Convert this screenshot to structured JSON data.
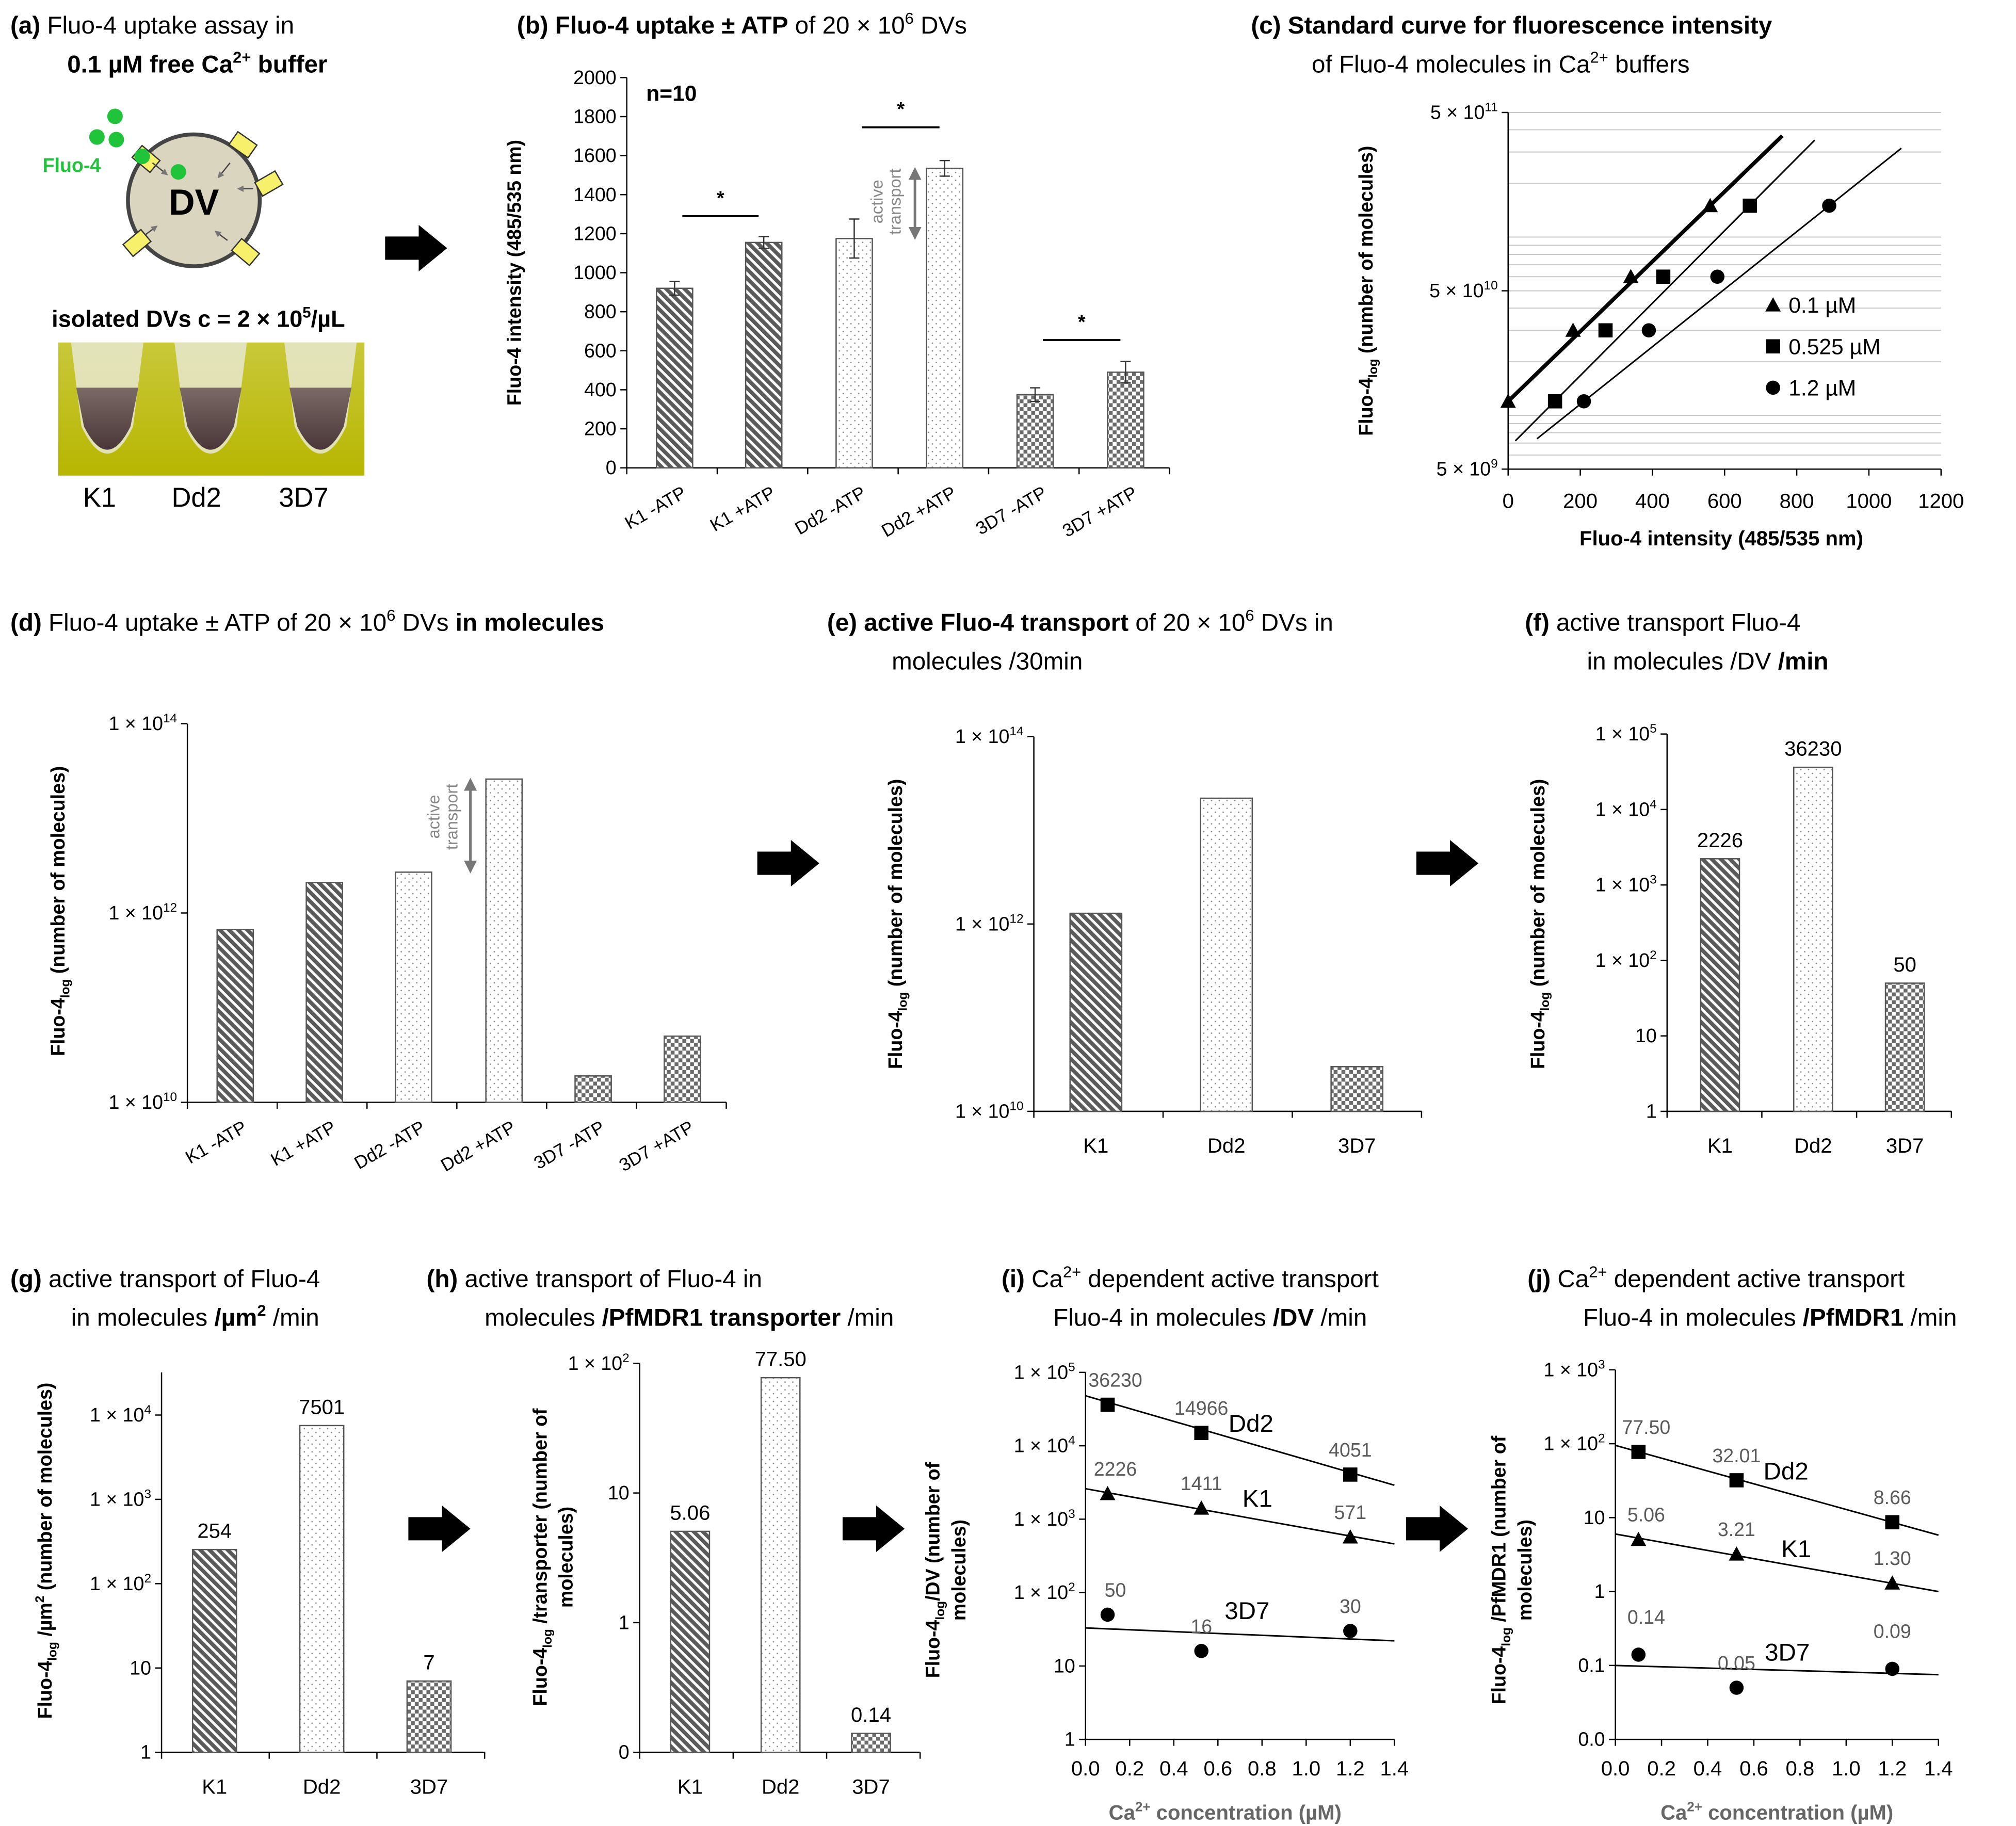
{
  "colors": {
    "fluo_green": "#1fc43a",
    "dv_fill": "#d9d5bf",
    "transporter_yellow": "#f7f06a",
    "bar_stroke": "#555555",
    "data_label_gray": "#5a5a5a",
    "arrow": "#000000"
  },
  "panel_a": {
    "title1": "**(a)** Fluo-4 uptake assay in",
    "title2": "**0.1 µM free Ca^{2+} buffer**",
    "fluo_label": "Fluo-4",
    "dv_label": "DV",
    "isolated_label": "**isolated DVs c = 2 × 10^{5}/µL**",
    "tubes": [
      "K1",
      "Dd2",
      "3D7"
    ]
  },
  "chart_data": [
    {
      "id": "b",
      "type": "bar",
      "scale": "linear",
      "title": [
        "**(b)**   **Fluo-4 uptake ± ATP** of 20 × 10^{6} DVs"
      ],
      "ylabel": [
        "**Fluo-4 intensity (485/535 nm)**"
      ],
      "xlabel": [],
      "ylim": [
        0,
        2000
      ],
      "yticks": [
        0,
        200,
        400,
        600,
        800,
        1000,
        1200,
        1400,
        1600,
        1800,
        2000
      ],
      "ytick_labels": [
        "0",
        "200",
        "400",
        "600",
        "800",
        "1000",
        "1200",
        "1400",
        "1600",
        "1800",
        "2000"
      ],
      "categories": [
        "K1 -ATP",
        "K1 +ATP",
        "Dd2 -ATP",
        "Dd2 +ATP",
        "3D7 -ATP",
        "3D7 +ATP"
      ],
      "values": [
        920,
        1155,
        1175,
        1535,
        375,
        490
      ],
      "errors": [
        35,
        30,
        100,
        40,
        35,
        55
      ],
      "patterns": [
        "hatch",
        "hatch",
        "dots",
        "dots",
        "checker",
        "checker"
      ],
      "n_label": "**n=10**",
      "significance": [
        {
          "pair": [
            0,
            1
          ],
          "label": "***",
          "y": 1290
        },
        {
          "pair": [
            2,
            3
          ],
          "label": "***",
          "y": 1745
        },
        {
          "pair": [
            4,
            5
          ],
          "label": "***",
          "y": 655
        }
      ],
      "arrow_label": [
        "active",
        "transport"
      ],
      "arrow_range": [
        1175,
        1535
      ],
      "grid": false,
      "legend": "none"
    },
    {
      "id": "c",
      "type": "scatter",
      "scale": "log",
      "title": [
        "**(c)**   **Standard curve for fluorescence intensity**",
        "of Fluo-4 molecules in Ca^{2+} buffers"
      ],
      "ylabel": [
        "**Fluo-4_{log} (number of molecules)**"
      ],
      "xlabel": [
        "**Fluo-4 intensity (485/535 nm)**"
      ],
      "xlim": [
        0,
        1200
      ],
      "ylim": [
        5000000000.0,
        500000000000.0
      ],
      "xticks": [
        0,
        200,
        400,
        600,
        800,
        1000,
        1200
      ],
      "xtick_labels": [
        "0",
        "200",
        "400",
        "600",
        "800",
        "1000",
        "1200"
      ],
      "yticks": [
        5000000000.0,
        50000000000.0,
        500000000000.0
      ],
      "ytick_labels": [
        "5 × 10^{9}",
        "5 × 10^{10}",
        "5 × 10^{11}"
      ],
      "grid": true,
      "legend": "lower-right",
      "series": [
        {
          "name": "0.1 µM",
          "marker": "triangle",
          "x": [
            0,
            180,
            340,
            560
          ],
          "y": [
            12000000000.0,
            30000000000.0,
            60000000000.0,
            150000000000.0
          ],
          "trend": [
            [
              0,
              12000000000.0
            ],
            [
              760,
              370000000000.0
            ]
          ],
          "trend_bold": true
        },
        {
          "name": "0.525 µM",
          "marker": "square",
          "x": [
            130,
            270,
            430,
            670
          ],
          "y": [
            12000000000.0,
            30000000000.0,
            60000000000.0,
            150000000000.0
          ],
          "trend": [
            [
              20,
              7200000000.0
            ],
            [
              850,
              350000000000.0
            ]
          ],
          "trend_bold": false
        },
        {
          "name": "1.2 µM",
          "marker": "circle",
          "x": [
            210,
            390,
            580,
            890
          ],
          "y": [
            12000000000.0,
            30000000000.0,
            60000000000.0,
            150000000000.0
          ],
          "trend": [
            [
              80,
              7400000000.0
            ],
            [
              1090,
              315000000000.0
            ]
          ],
          "trend_bold": false
        }
      ]
    },
    {
      "id": "d",
      "type": "bar",
      "scale": "log",
      "title": [
        "**(d)**  Fluo-4 uptake ± ATP of 20 × 10^{6} DVs **in molecules**"
      ],
      "ylabel": [
        "**Fluo-4_{log} (number of molecules)**"
      ],
      "xlabel": [],
      "ylim": [
        10000000000.0,
        100000000000000.0
      ],
      "yticks": [
        10000000000.0,
        1000000000000.0,
        100000000000000.0
      ],
      "ytick_labels": [
        "1 × 10^{10}",
        "1 × 10^{12}",
        "1 × 10^{14}"
      ],
      "categories": [
        "K1 -ATP",
        "K1 +ATP",
        "Dd2 -ATP",
        "Dd2 +ATP",
        "3D7 -ATP",
        "3D7 +ATP"
      ],
      "values": [
        670000000000.0,
        2100000000000.0,
        2700000000000.0,
        26000000000000.0,
        19000000000.0,
        50000000000.0
      ],
      "patterns": [
        "hatch",
        "hatch",
        "dots",
        "dots",
        "checker",
        "checker"
      ],
      "arrow_label": [
        "active",
        "transport"
      ],
      "arrow_range": [
        2700000000000.0,
        26000000000000.0
      ],
      "grid": false,
      "legend": "none"
    },
    {
      "id": "e",
      "type": "bar",
      "scale": "log",
      "title": [
        "**(e)**  **active Fluo-4 transport** of 20 × 10^{6} DVs in",
        "molecules /30min"
      ],
      "ylabel": [
        "**Fluo-4_{log} (number of molecules)**"
      ],
      "xlabel": [],
      "ylim": [
        10000000000.0,
        100000000000000.0
      ],
      "yticks": [
        10000000000.0,
        1000000000000.0,
        100000000000000.0
      ],
      "ytick_labels": [
        "1 × 10^{10}",
        "1 × 10^{12}",
        "1 × 10^{14}"
      ],
      "categories": [
        "K1",
        "Dd2",
        "3D7"
      ],
      "values": [
        1300000000000.0,
        22000000000000.0,
        30000000000.0
      ],
      "patterns": [
        "hatch",
        "dots",
        "checker"
      ],
      "grid": false,
      "legend": "none"
    },
    {
      "id": "f",
      "type": "bar",
      "scale": "log",
      "title": [
        "**(f)**   active transport Fluo-4",
        "in molecules /DV **/min**"
      ],
      "ylabel": [
        "**Fluo-4_{log} (number of molecules)**"
      ],
      "xlabel": [],
      "ylim": [
        1,
        100000.0
      ],
      "yticks": [
        1,
        10,
        100,
        1000,
        10000,
        100000
      ],
      "ytick_labels": [
        "1",
        "10",
        "1 × 10^{2}",
        "1 × 10^{3}",
        "1 × 10^{4}",
        "1 × 10^{5}"
      ],
      "categories": [
        "K1",
        "Dd2",
        "3D7"
      ],
      "values": [
        2226,
        36230,
        50
      ],
      "data_labels": [
        "2226",
        "36230",
        "50"
      ],
      "patterns": [
        "hatch",
        "dots",
        "checker"
      ],
      "grid": false,
      "legend": "none"
    },
    {
      "id": "g",
      "type": "bar",
      "scale": "log",
      "title": [
        "**(g)**  active transport of Fluo-4",
        "in molecules **/µm^{2}** /min"
      ],
      "ylabel": [
        "**Fluo-4_{log} /µm^{2} (number of molecules)**"
      ],
      "xlabel": [],
      "ylim": [
        1,
        10000.0
      ],
      "yticks": [
        1,
        10,
        100,
        1000,
        10000
      ],
      "ytick_labels": [
        "1",
        "10",
        "1 × 10^{2}",
        "1 × 10^{3}",
        "1 × 10^{4}"
      ],
      "categories": [
        "K1",
        "Dd2",
        "3D7"
      ],
      "values": [
        254,
        7501,
        7
      ],
      "data_labels": [
        "254",
        "7501",
        "7"
      ],
      "patterns": [
        "hatch",
        "dots",
        "checker"
      ],
      "grid": false,
      "legend": "none"
    },
    {
      "id": "h",
      "type": "bar",
      "scale": "log",
      "title": [
        "**(h)**  active transport of Fluo-4 in",
        "molecules **/PfMDR1 transporter** /min"
      ],
      "ylabel": [
        "**Fluo-4_{log} /transporter (number of**",
        "**molecules)**"
      ],
      "xlabel": [],
      "ylim": [
        0.1,
        100
      ],
      "yticks": [
        0.1,
        1,
        10,
        100
      ],
      "ytick_labels": [
        "0",
        "1",
        "10",
        "1 × 10^{2}"
      ],
      "categories": [
        "K1",
        "Dd2",
        "3D7"
      ],
      "values": [
        5.06,
        77.5,
        0.14
      ],
      "data_labels": [
        "5.06",
        "77.50",
        "0.14"
      ],
      "patterns": [
        "hatch",
        "dots",
        "checker"
      ],
      "grid": false,
      "legend": "none"
    },
    {
      "id": "i",
      "type": "scatter",
      "scale": "log",
      "title": [
        "**(i)**  Ca^{2+} dependent active transport",
        "Fluo-4 in molecules **/DV** /min"
      ],
      "ylabel": [
        "**Fluo-4_{log}/DV (number of**",
        "**molecules)**"
      ],
      "xlabel": [
        "**Ca^{2+} concentration (µM)**"
      ],
      "xlim": [
        0,
        1.4
      ],
      "ylim": [
        1,
        100000.0
      ],
      "xticks": [
        0,
        0.2,
        0.4,
        0.6,
        0.8,
        1.0,
        1.2,
        1.4
      ],
      "xtick_labels": [
        "0.0",
        "0.2",
        "0.4",
        "0.6",
        "0.8",
        "1.0",
        "1.2",
        "1.4"
      ],
      "yticks": [
        1,
        10,
        100,
        1000,
        10000,
        100000
      ],
      "ytick_labels": [
        "1",
        "10",
        "1 × 10^{2}",
        "1 × 10^{3}",
        "1 × 10^{4}",
        "1 × 10^{5}"
      ],
      "grid": false,
      "legend": "inline",
      "series": [
        {
          "name": "Dd2",
          "marker": "square",
          "x": [
            0.1,
            0.525,
            1.2
          ],
          "y": [
            36230,
            14966,
            4051
          ],
          "labels": [
            "36230",
            "14966",
            "4051"
          ],
          "trend": [
            [
              0,
              48000
            ],
            [
              1.4,
              2900
            ]
          ]
        },
        {
          "name": "K1",
          "marker": "triangle",
          "x": [
            0.1,
            0.525,
            1.2
          ],
          "y": [
            2226,
            1411,
            571
          ],
          "labels": [
            "2226",
            "1411",
            "571"
          ],
          "trend": [
            [
              0,
              2600
            ],
            [
              1.4,
              460
            ]
          ]
        },
        {
          "name": "3D7",
          "marker": "circle",
          "x": [
            0.1,
            0.525,
            1.2
          ],
          "y": [
            50,
            16,
            30
          ],
          "labels": [
            "50",
            "16",
            "30"
          ],
          "trend": [
            [
              0,
              33
            ],
            [
              1.4,
              22
            ]
          ]
        }
      ]
    },
    {
      "id": "j",
      "type": "scatter",
      "scale": "log",
      "title": [
        "**(j)**  Ca^{2+} dependent active transport",
        "Fluo-4 in molecules **/PfMDR1** /min"
      ],
      "ylabel": [
        "**Fluo-4_{log} /PfMDR1 (number of**",
        "**molecules)**"
      ],
      "xlabel": [
        "**Ca^{2+} concentration (µM)**"
      ],
      "xlim": [
        0,
        1.4
      ],
      "ylim": [
        0.01,
        1000
      ],
      "xticks": [
        0,
        0.2,
        0.4,
        0.6,
        0.8,
        1.0,
        1.2,
        1.4
      ],
      "xtick_labels": [
        "0.0",
        "0.2",
        "0.4",
        "0.6",
        "0.8",
        "1.0",
        "1.2",
        "1.4"
      ],
      "yticks": [
        0.01,
        0.1,
        1,
        10,
        100,
        1000
      ],
      "ytick_labels": [
        "0.0",
        "0.1",
        "1",
        "10",
        "1 × 10^{2}",
        "1 × 10^{3}"
      ],
      "grid": false,
      "legend": "inline",
      "series": [
        {
          "name": "Dd2",
          "marker": "square",
          "x": [
            0.1,
            0.525,
            1.2
          ],
          "y": [
            77.5,
            32.01,
            8.66
          ],
          "labels": [
            "77.50",
            "32.01",
            "8.66"
          ],
          "trend": [
            [
              0,
              95
            ],
            [
              1.4,
              5.8
            ]
          ]
        },
        {
          "name": "K1",
          "marker": "triangle",
          "x": [
            0.1,
            0.525,
            1.2
          ],
          "y": [
            5.06,
            3.21,
            1.3
          ],
          "labels": [
            "5.06",
            "3.21",
            "1.30"
          ],
          "trend": [
            [
              0,
              6
            ],
            [
              1.4,
              1.0
            ]
          ]
        },
        {
          "name": "3D7",
          "marker": "circle",
          "x": [
            0.1,
            0.525,
            1.2
          ],
          "y": [
            0.14,
            0.05,
            0.09
          ],
          "labels": [
            "0.14",
            "0.05",
            "0.09"
          ],
          "trend": [
            [
              0,
              0.1
            ],
            [
              1.4,
              0.075
            ]
          ]
        }
      ]
    }
  ]
}
